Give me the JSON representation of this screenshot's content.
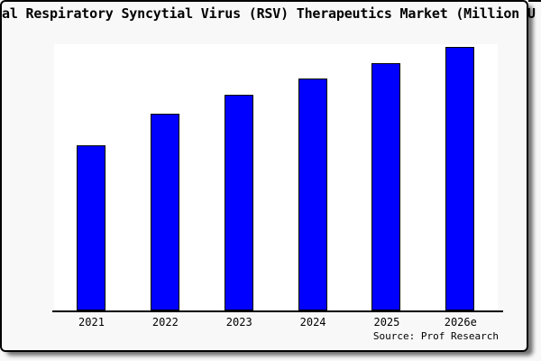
{
  "title": "al Respiratory Syncytial Virus (RSV) Therapeutics Market (Million U",
  "source": "Source: Prof Research",
  "chart_data": {
    "type": "bar",
    "title": "al Respiratory Syncytial Virus (RSV) Therapeutics Market (Million U",
    "categories": [
      "2021",
      "2022",
      "2023",
      "2024",
      "2025",
      "2026e"
    ],
    "values": [
      62,
      74,
      81,
      87,
      93,
      99
    ],
    "xlabel": "",
    "ylabel": "",
    "ylim": [
      0,
      100
    ],
    "grid": false,
    "legend": false,
    "bar_color": "#0000fe",
    "bar_edge_color": "#000000",
    "plot_bg": "#ffffff",
    "page_bg": "#f8f8f8"
  }
}
